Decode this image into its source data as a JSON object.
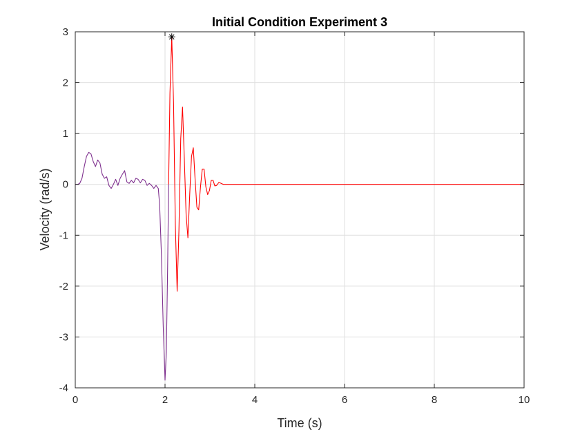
{
  "chart_data": {
    "type": "line",
    "title": "Initial Condition Experiment 3",
    "xlabel": "Time (s)",
    "ylabel": "Velocity (rad/s)",
    "xlim": [
      0,
      10
    ],
    "ylim": [
      -4,
      3
    ],
    "grid": true,
    "xticks": [
      0,
      2,
      4,
      6,
      8,
      10
    ],
    "xtick_labels": [
      "0",
      "2",
      "4",
      "6",
      "8",
      "10"
    ],
    "yticks": [
      -4,
      -3,
      -2,
      -1,
      0,
      1,
      2,
      3
    ],
    "ytick_labels": [
      "-4",
      "-3",
      "-2",
      "-1",
      "0",
      "1",
      "2",
      "3"
    ],
    "series": [
      {
        "color": "#7e2f8e",
        "points": [
          [
            0,
            0
          ],
          [
            0.05,
            0.0
          ],
          [
            0.1,
            0.02
          ],
          [
            0.15,
            0.12
          ],
          [
            0.2,
            0.35
          ],
          [
            0.25,
            0.55
          ],
          [
            0.3,
            0.63
          ],
          [
            0.35,
            0.6
          ],
          [
            0.4,
            0.45
          ],
          [
            0.45,
            0.35
          ],
          [
            0.5,
            0.48
          ],
          [
            0.55,
            0.42
          ],
          [
            0.6,
            0.2
          ],
          [
            0.65,
            0.12
          ],
          [
            0.7,
            0.15
          ],
          [
            0.75,
            -0.02
          ],
          [
            0.8,
            -0.08
          ],
          [
            0.85,
            0.0
          ],
          [
            0.9,
            0.1
          ],
          [
            0.95,
            -0.02
          ],
          [
            1.0,
            0.12
          ],
          [
            1.05,
            0.2
          ],
          [
            1.1,
            0.27
          ],
          [
            1.15,
            0.05
          ],
          [
            1.2,
            0.02
          ],
          [
            1.25,
            0.08
          ],
          [
            1.3,
            0.03
          ],
          [
            1.35,
            0.12
          ],
          [
            1.4,
            0.1
          ],
          [
            1.45,
            0.03
          ],
          [
            1.5,
            0.1
          ],
          [
            1.55,
            0.08
          ],
          [
            1.6,
            -0.02
          ],
          [
            1.65,
            0.02
          ],
          [
            1.7,
            -0.02
          ],
          [
            1.75,
            -0.08
          ],
          [
            1.8,
            -0.02
          ],
          [
            1.85,
            -0.08
          ],
          [
            1.88,
            -0.4
          ],
          [
            1.92,
            -1.4
          ],
          [
            1.96,
            -2.8
          ],
          [
            2.0,
            -3.85
          ],
          [
            2.03,
            -3.3
          ],
          [
            2.06,
            -1.5
          ],
          [
            2.08,
            0.0
          ]
        ]
      },
      {
        "color": "#ff0000",
        "points": [
          [
            2.08,
            0.0
          ],
          [
            2.11,
            1.8
          ],
          [
            2.15,
            2.9
          ],
          [
            2.19,
            1.6
          ],
          [
            2.23,
            -0.8
          ],
          [
            2.27,
            -2.1
          ],
          [
            2.31,
            -0.9
          ],
          [
            2.35,
            0.9
          ],
          [
            2.39,
            1.52
          ],
          [
            2.43,
            0.5
          ],
          [
            2.47,
            -0.6
          ],
          [
            2.51,
            -1.05
          ],
          [
            2.55,
            -0.2
          ],
          [
            2.59,
            0.55
          ],
          [
            2.63,
            0.72
          ],
          [
            2.67,
            0.1
          ],
          [
            2.71,
            -0.45
          ],
          [
            2.75,
            -0.5
          ],
          [
            2.79,
            -0.05
          ],
          [
            2.83,
            0.3
          ],
          [
            2.87,
            0.3
          ],
          [
            2.91,
            -0.05
          ],
          [
            2.95,
            -0.2
          ],
          [
            2.99,
            -0.12
          ],
          [
            3.03,
            0.08
          ],
          [
            3.07,
            0.08
          ],
          [
            3.11,
            -0.03
          ],
          [
            3.15,
            -0.02
          ],
          [
            3.2,
            0.04
          ],
          [
            3.25,
            0.02
          ],
          [
            3.3,
            0.0
          ],
          [
            10,
            0.0
          ]
        ]
      }
    ],
    "marker": {
      "x": 2.15,
      "y": 2.9,
      "symbol": "*",
      "color": "#000000"
    }
  }
}
